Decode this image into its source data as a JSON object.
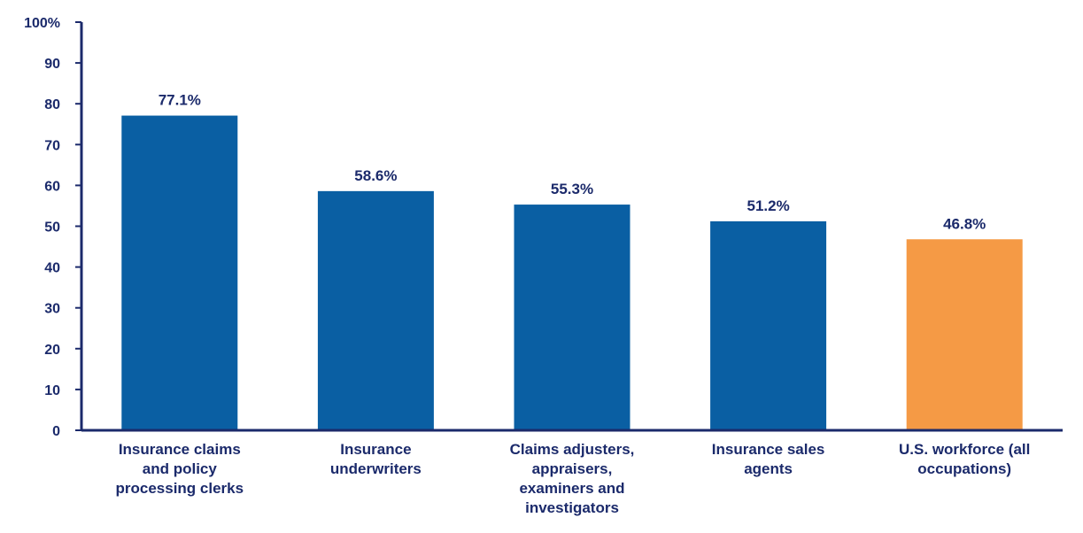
{
  "chart_data": {
    "type": "bar",
    "categories": [
      [
        "Insurance claims",
        "and policy",
        "processing clerks"
      ],
      [
        "Insurance",
        "underwriters"
      ],
      [
        "Claims adjusters,",
        "appraisers,",
        "examiners and",
        "investigators"
      ],
      [
        "Insurance sales",
        "agents"
      ],
      [
        "U.S. workforce (all",
        "occupations)"
      ]
    ],
    "values": [
      77.1,
      58.6,
      55.3,
      51.2,
      46.8
    ],
    "data_labels": [
      "77.1%",
      "58.6%",
      "55.3%",
      "51.2%",
      "46.8%"
    ],
    "bar_colors": [
      "#0a5fa3",
      "#0a5fa3",
      "#0a5fa3",
      "#0a5fa3",
      "#f59a45"
    ],
    "ylim": [
      0,
      100
    ],
    "y_ticks": [
      0,
      10,
      20,
      30,
      40,
      50,
      60,
      70,
      80,
      90,
      100
    ],
    "y_tick_labels": [
      "0",
      "10",
      "20",
      "30",
      "40",
      "50",
      "60",
      "70",
      "80",
      "90",
      "100%"
    ],
    "axis_color": "#1b2a6b",
    "grid": false,
    "legend": "none",
    "title": "",
    "xlabel": "",
    "ylabel": ""
  }
}
